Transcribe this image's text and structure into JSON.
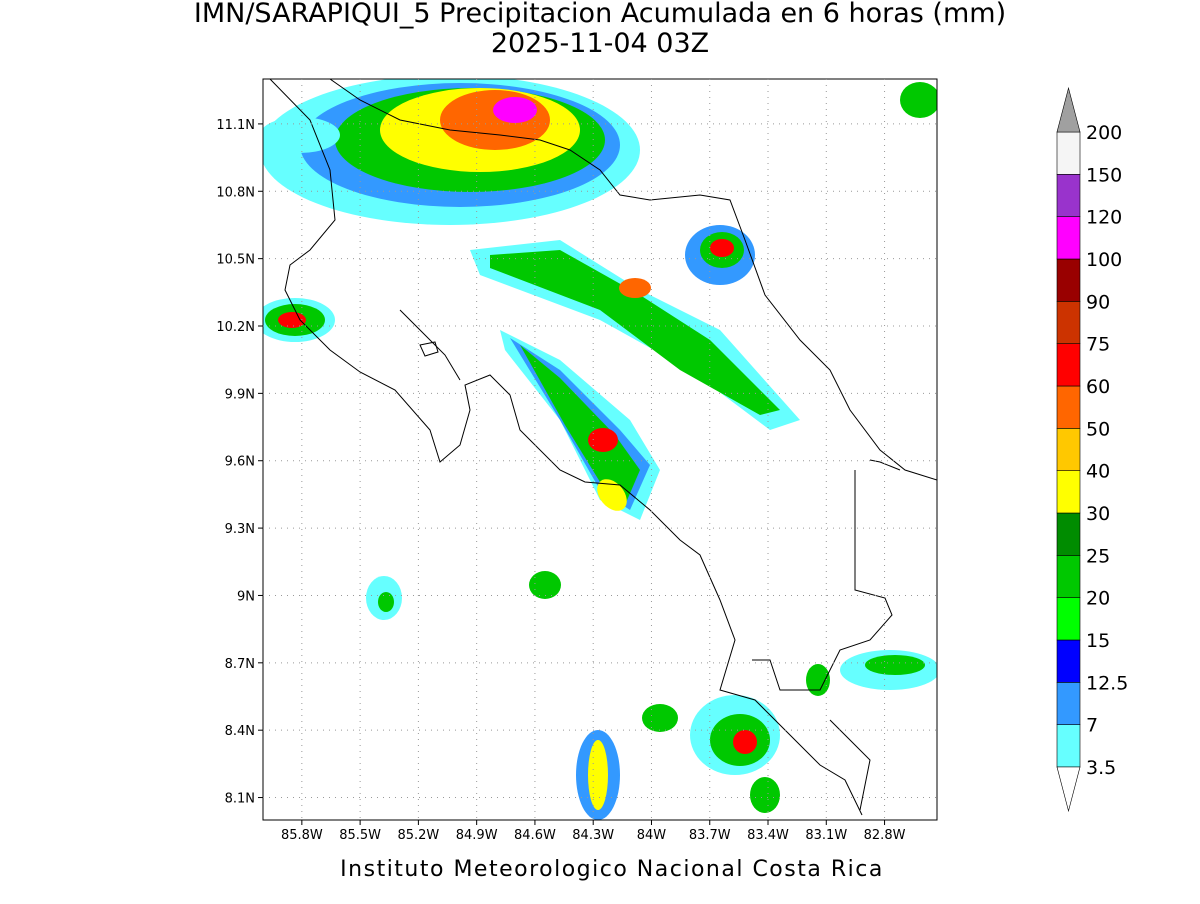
{
  "map": {
    "title": "IMN/SARAPIQUI_5 Precipitacion Acumulada en 6 horas (mm)",
    "subtitle": "2025-11-04 03Z",
    "credit": "Instituto Meteorologico Nacional Costa Rica",
    "xlim": [
      -86.0,
      -82.53
    ],
    "ylim": [
      8.0,
      11.3
    ],
    "xticks": [
      {
        "value": -85.8,
        "label": "85.8W"
      },
      {
        "value": -85.5,
        "label": "85.5W"
      },
      {
        "value": -85.2,
        "label": "85.2W"
      },
      {
        "value": -84.9,
        "label": "84.9W"
      },
      {
        "value": -84.6,
        "label": "84.6W"
      },
      {
        "value": -84.3,
        "label": "84.3W"
      },
      {
        "value": -84.0,
        "label": "84W"
      },
      {
        "value": -83.7,
        "label": "83.7W"
      },
      {
        "value": -83.4,
        "label": "83.4W"
      },
      {
        "value": -83.1,
        "label": "83.1W"
      },
      {
        "value": -82.8,
        "label": "82.8W"
      }
    ],
    "yticks": [
      {
        "value": 8.1,
        "label": "8.1N"
      },
      {
        "value": 8.4,
        "label": "8.4N"
      },
      {
        "value": 8.7,
        "label": "8.7N"
      },
      {
        "value": 9.0,
        "label": "9N"
      },
      {
        "value": 9.3,
        "label": "9.3N"
      },
      {
        "value": 9.6,
        "label": "9.6N"
      },
      {
        "value": 9.9,
        "label": "9.9N"
      },
      {
        "value": 10.2,
        "label": "10.2N"
      },
      {
        "value": 10.5,
        "label": "10.5N"
      },
      {
        "value": 10.8,
        "label": "10.8N"
      },
      {
        "value": 11.1,
        "label": "11.1N"
      }
    ],
    "grid": true,
    "colorbar": {
      "levels": [
        3.5,
        7,
        12.5,
        15,
        20,
        25,
        30,
        40,
        50,
        60,
        75,
        90,
        100,
        120,
        150,
        200
      ],
      "colors": [
        "#66ffff",
        "#3399ff",
        "#0000ff",
        "#00ff00",
        "#00c800",
        "#008c00",
        "#ffff00",
        "#ffc800",
        "#ff6600",
        "#ff0000",
        "#cc3300",
        "#990000",
        "#ff00ff",
        "#9933cc",
        "#f5f5f5"
      ],
      "over_color": "#a0a0a0",
      "under_color": "#ffffff"
    }
  }
}
